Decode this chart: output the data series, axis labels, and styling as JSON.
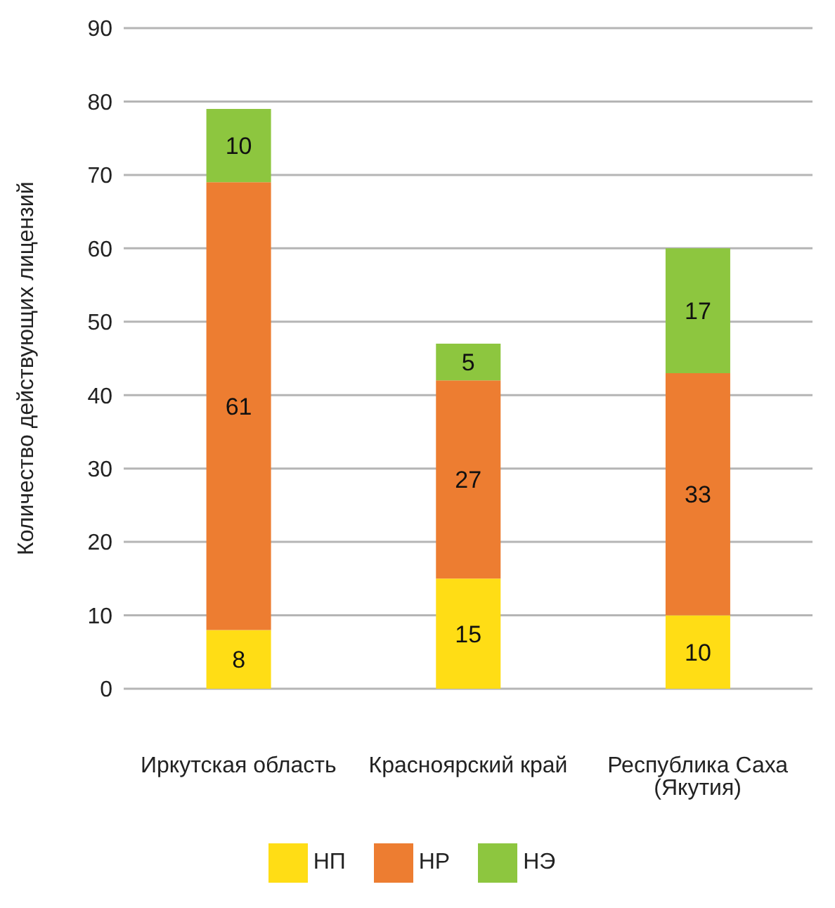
{
  "chart_data": {
    "type": "bar",
    "stacked": true,
    "ylabel": "Количество действующих лицензий",
    "categories": [
      "Иркутская область",
      "Красноярский край",
      "Республика Саха (Якутия)"
    ],
    "series": [
      {
        "name": "НП",
        "color": "#ffdd15",
        "values": [
          8,
          15,
          10
        ]
      },
      {
        "name": "НР",
        "color": "#ed7d31",
        "values": [
          61,
          27,
          33
        ]
      },
      {
        "name": "НЭ",
        "color": "#8dc63f",
        "values": [
          10,
          5,
          17
        ]
      }
    ],
    "ylim": [
      0,
      90
    ],
    "yticks": [
      0,
      10,
      20,
      30,
      40,
      50,
      60,
      70,
      80,
      90
    ],
    "grid": "y",
    "legend": "bottom",
    "data_labels": true
  }
}
